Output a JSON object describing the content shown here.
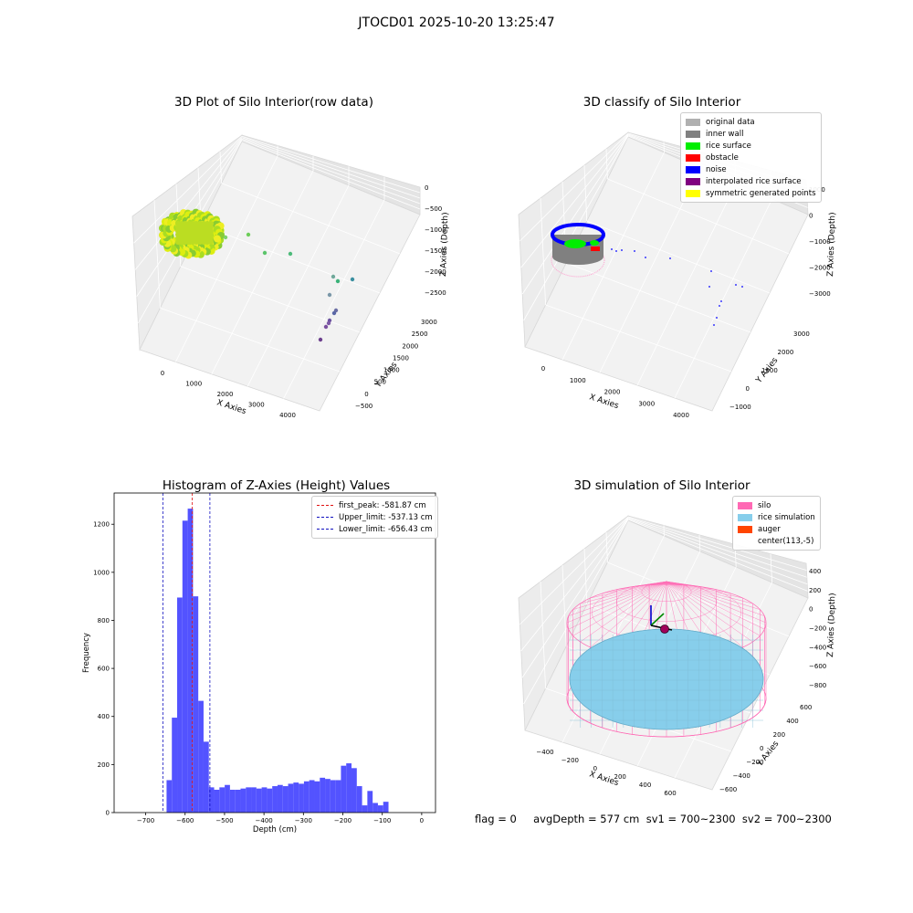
{
  "suptitle": "JTOCD01 2025-10-20 13:25:47",
  "footer": "flag = 0     avgDepth = 577 cm  sv1 = 700~2300  sv2 = 700~2300",
  "colors": {
    "hist_bar": "#4a4aff",
    "first_peak": "#e01010",
    "limits": "#1010c0",
    "pane": "#ececec",
    "silo": "#ff69b4",
    "rice_sim": "#87ceeb",
    "auger": "#ff4500"
  },
  "chart_data": [
    {
      "type": "scatter",
      "projection": "3d",
      "title": "3D Plot of Silo Interior(row data)",
      "xlabel": "X Axies",
      "ylabel": "Y Axies",
      "zlabel": "Z Axies (Depth)",
      "x_ticks": [
        "0",
        "1000",
        "2000",
        "3000",
        "4000"
      ],
      "y_ticks": [
        "−500",
        "0",
        "500",
        "1000",
        "1500",
        "2000",
        "2500",
        "3000"
      ],
      "z_ticks": [
        "0",
        "−500",
        "−1000",
        "−1500",
        "−2000",
        "−2500"
      ],
      "colormap": "viridis",
      "points_note": "dense ring cluster near origin plus scattered outliers",
      "outliers": [
        {
          "x": 1500,
          "y": 200,
          "z": -1300
        },
        {
          "x": 2000,
          "y": 300,
          "z": -1450
        },
        {
          "x": 2500,
          "y": 500,
          "z": -1500
        },
        {
          "x": 3300,
          "y": 900,
          "z": -2150
        },
        {
          "x": 3400,
          "y": 1100,
          "z": -2200
        },
        {
          "x": 3200,
          "y": 1500,
          "z": -2300
        },
        {
          "x": 3100,
          "y": 1800,
          "z": -2450
        },
        {
          "x": 3000,
          "y": 2100,
          "z": -2550
        },
        {
          "x": 2900,
          "y": 2400,
          "z": -2650
        }
      ]
    },
    {
      "type": "scatter",
      "projection": "3d",
      "title": "3D classify of Silo Interior",
      "xlabel": "X Axies",
      "ylabel": "Y Axies",
      "zlabel": "Z Axies (Depth)",
      "x_ticks": [
        "0",
        "1000",
        "2000",
        "3000",
        "4000"
      ],
      "y_ticks": [
        "−1000",
        "0",
        "1000",
        "2000",
        "3000"
      ],
      "z_ticks": [
        "1000",
        "0",
        "−1000",
        "−2000",
        "−3000"
      ],
      "legend": [
        {
          "label": "original data",
          "color": "#b0b0b0"
        },
        {
          "label": "inner wall",
          "color": "#808080"
        },
        {
          "label": "rice surface",
          "color": "#00ee00"
        },
        {
          "label": "obstacle",
          "color": "#ff0000"
        },
        {
          "label": "noise",
          "color": "#0000ff"
        },
        {
          "label": "interpolated rice surface",
          "color": "#800080"
        },
        {
          "label": "symmetric generated points",
          "color": "#ffff00"
        }
      ],
      "legend_position": "upper-right"
    },
    {
      "type": "bar",
      "subtype": "histogram",
      "title": "Histogram of Z-Axies (Height) Values",
      "xlabel": "Depth (cm)",
      "ylabel": "Frequency",
      "xlim": [
        -780,
        35
      ],
      "ylim": [
        0,
        1330
      ],
      "x_ticks": [
        -700,
        -600,
        -500,
        -400,
        -300,
        -200,
        -100,
        0
      ],
      "x_tick_labels": [
        "−700",
        "−600",
        "−500",
        "−400",
        "−300",
        "−200",
        "−100",
        "0"
      ],
      "y_ticks": [
        0,
        200,
        400,
        600,
        800,
        1000,
        1200
      ],
      "y_tick_labels": [
        "0",
        "200",
        "400",
        "600",
        "800",
        "1000",
        "1200"
      ],
      "bin_start": -647,
      "bin_width": 13.4,
      "values": [
        135,
        395,
        895,
        1215,
        1265,
        900,
        465,
        295,
        105,
        95,
        105,
        115,
        95,
        95,
        100,
        105,
        105,
        100,
        105,
        100,
        110,
        115,
        110,
        120,
        125,
        120,
        130,
        135,
        130,
        145,
        140,
        135,
        135,
        195,
        205,
        185,
        110,
        30,
        90,
        40,
        30,
        45
      ],
      "vlines": [
        {
          "label": "first_peak: -581.87 cm",
          "x": -581.87,
          "color": "#e01010"
        },
        {
          "label": "Upper_limit: -537.13 cm",
          "x": -537.13,
          "color": "#1010c0"
        },
        {
          "label": "Lower_limit: -656.43 cm",
          "x": -656.43,
          "color": "#1010c0"
        }
      ],
      "legend_position": "upper-right"
    },
    {
      "type": "surface",
      "projection": "3d",
      "title": "3D simulation of Silo Interior",
      "xlabel": "X Axies",
      "ylabel": "Y Axies",
      "zlabel": "Z Axies (Depth)",
      "x_ticks": [
        "−400",
        "−200",
        "0",
        "200",
        "400",
        "600"
      ],
      "y_ticks": [
        "−600",
        "−400",
        "−200",
        "0",
        "200",
        "400",
        "600"
      ],
      "z_ticks": [
        "400",
        "200",
        "0",
        "−200",
        "−400",
        "−600",
        "−800"
      ],
      "legend": [
        {
          "label": "silo",
          "color": "#ff69b4"
        },
        {
          "label": "rice simulation",
          "color": "#87ceeb"
        },
        {
          "label": "auger",
          "color": "#ff4500"
        },
        {
          "label": "center(113,-5)",
          "color": null
        }
      ],
      "legend_position": "upper-right"
    }
  ]
}
